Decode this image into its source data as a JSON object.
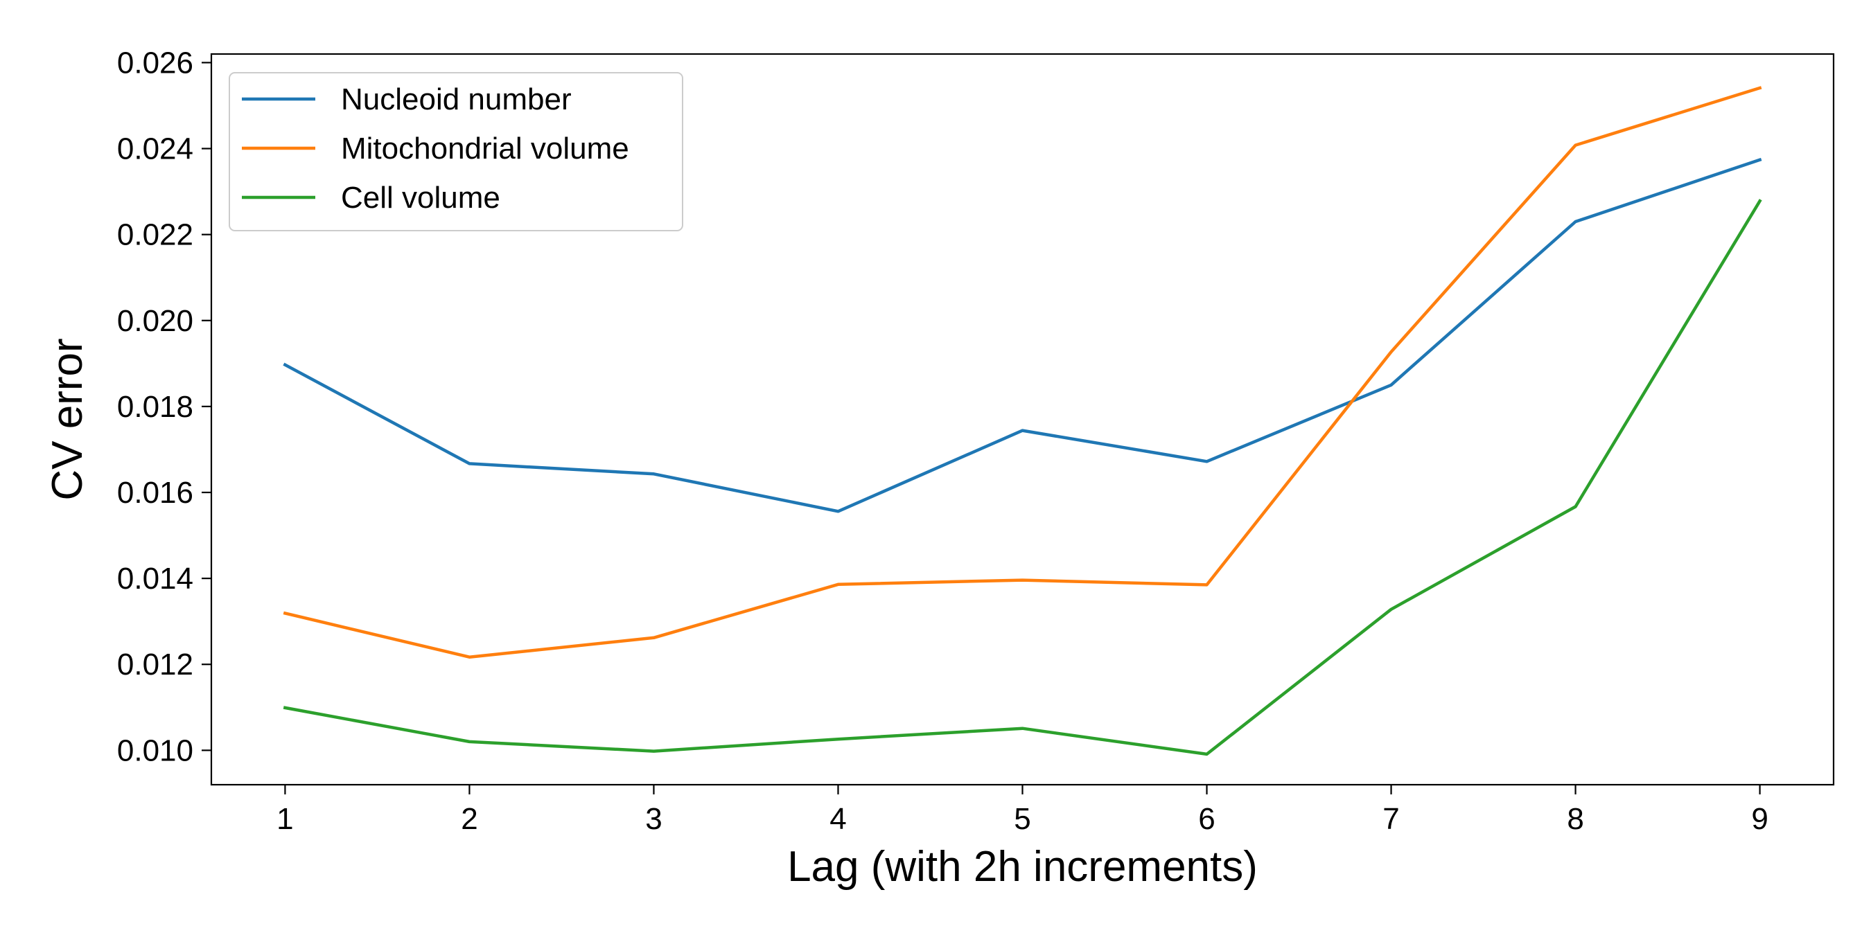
{
  "chart_data": {
    "type": "line",
    "title": "",
    "xlabel": "Lag (with 2h increments)",
    "ylabel": "CV error",
    "x": [
      1,
      2,
      3,
      4,
      5,
      6,
      7,
      8,
      9
    ],
    "xticks": [
      "1",
      "2",
      "3",
      "4",
      "5",
      "6",
      "7",
      "8",
      "9"
    ],
    "xlim": [
      0.6,
      9.4
    ],
    "ylim": [
      0.0092,
      0.0262
    ],
    "yticks": [
      "0.010",
      "0.012",
      "0.014",
      "0.016",
      "0.018",
      "0.020",
      "0.022",
      "0.024",
      "0.026"
    ],
    "ytick_values": [
      0.01,
      0.012,
      0.014,
      0.016,
      0.018,
      0.02,
      0.022,
      0.024,
      0.026
    ],
    "grid": false,
    "legend_position": "top-left",
    "series": [
      {
        "name": "Nucleoid number",
        "color": "#1f77b4",
        "values": [
          0.01897,
          0.01667,
          0.01643,
          0.01556,
          0.01744,
          0.01672,
          0.0185,
          0.0223,
          0.02374
        ]
      },
      {
        "name": "Mitochondrial volume",
        "color": "#ff7f0e",
        "values": [
          0.01319,
          0.01217,
          0.01262,
          0.01386,
          0.01396,
          0.01385,
          0.01927,
          0.02408,
          0.02541
        ]
      },
      {
        "name": "Cell volume",
        "color": "#2ca02c",
        "values": [
          0.01099,
          0.0102,
          0.00998,
          0.01026,
          0.01051,
          0.00991,
          0.01328,
          0.01567,
          0.02278
        ]
      }
    ]
  }
}
